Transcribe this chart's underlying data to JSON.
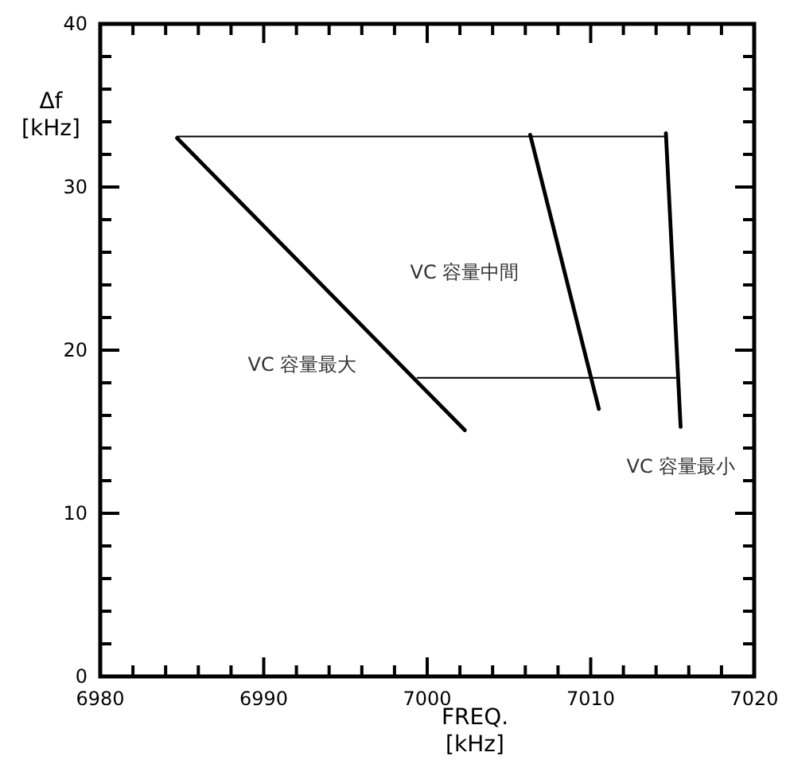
{
  "chart_data": {
    "type": "line",
    "xlabel": "FREQ. [kHz]",
    "ylabel": "Δf [kHz]",
    "xlim": [
      6980,
      7020
    ],
    "ylim": [
      0,
      40
    ],
    "xticks": [
      6980,
      {
        "value": 6982,
        "label": null
      },
      {
        "value": 6984,
        "label": null
      },
      {
        "value": 6986,
        "label": null
      },
      {
        "value": 6988,
        "label": null
      },
      6990,
      {
        "value": 6992,
        "label": null
      },
      {
        "value": 6994,
        "label": null
      },
      {
        "value": 6996,
        "label": null
      },
      {
        "value": 6998,
        "label": null
      },
      7000,
      {
        "value": 7002,
        "label": null
      },
      {
        "value": 7004,
        "label": null
      },
      {
        "value": 7006,
        "label": null
      },
      {
        "value": 7008,
        "label": null
      },
      7010,
      {
        "value": 7012,
        "label": null
      },
      {
        "value": 7014,
        "label": null
      },
      {
        "value": 7016,
        "label": null
      },
      {
        "value": 7018,
        "label": null
      },
      7020
    ],
    "yticks": [
      0,
      {
        "value": 2,
        "label": null
      },
      {
        "value": 4,
        "label": null
      },
      {
        "value": 6,
        "label": null
      },
      {
        "value": 8,
        "label": null
      },
      10,
      {
        "value": 12,
        "label": null
      },
      {
        "value": 14,
        "label": null
      },
      {
        "value": 16,
        "label": null
      },
      {
        "value": 18,
        "label": null
      },
      20,
      {
        "value": 22,
        "label": null
      },
      {
        "value": 24,
        "label": null
      },
      {
        "value": 26,
        "label": null
      },
      {
        "value": 28,
        "label": null
      },
      30,
      {
        "value": 32,
        "label": null
      },
      {
        "value": 34,
        "label": null
      },
      {
        "value": 36,
        "label": null
      },
      {
        "value": 38,
        "label": null
      },
      40
    ],
    "grid": false,
    "marker": "none",
    "line_style": "solid",
    "series": [
      {
        "color": "#000000",
        "x": [
          6984.7,
          7002.3
        ],
        "values": [
          33.0,
          15.1
        ]
      },
      {
        "color": "#000000",
        "x": [
          7006.3,
          7010.5
        ],
        "values": [
          33.2,
          16.4
        ]
      },
      {
        "color": "#000000",
        "x": [
          7014.6,
          7015.5
        ],
        "values": [
          33.3,
          15.3
        ]
      },
      {
        "color": "#000000",
        "x": [
          6984.7,
          7014.6
        ],
        "values": [
          33.1,
          33.1
        ]
      },
      {
        "color": "#000000",
        "x": [
          6999.4,
          7015.2
        ],
        "values": [
          18.3,
          18.3
        ]
      }
    ],
    "annotations": [
      "VC 容量最大",
      "VC 容量中間",
      "VC 容量最小"
    ]
  }
}
